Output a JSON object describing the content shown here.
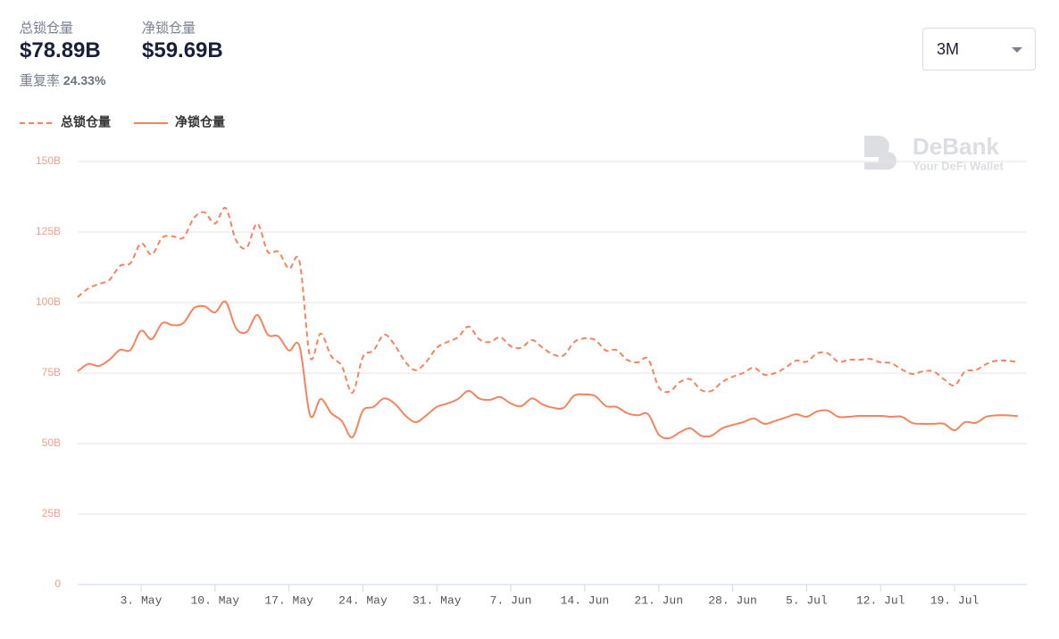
{
  "header": {
    "total_label": "总锁仓量",
    "total_value": "$78.89B",
    "net_label": "净锁仓量",
    "net_value": "$59.69B",
    "ratio_label": "重复率",
    "ratio_value": "24.33%"
  },
  "range_select": "3M",
  "watermark": {
    "brand": "DeBank",
    "tagline": "Your DeFi Wallet"
  },
  "chart_data": {
    "type": "line",
    "legend": "top-left",
    "grid": true,
    "categories": [
      null,
      null,
      null,
      null,
      null,
      null,
      "3. May",
      null,
      null,
      null,
      null,
      null,
      null,
      "10. May",
      null,
      null,
      null,
      null,
      null,
      null,
      "17. May",
      null,
      null,
      null,
      null,
      null,
      null,
      "24. May",
      null,
      null,
      null,
      null,
      null,
      null,
      "31. May",
      null,
      null,
      null,
      null,
      null,
      null,
      "7. Jun",
      null,
      null,
      null,
      null,
      null,
      null,
      "14. Jun",
      null,
      null,
      null,
      null,
      null,
      null,
      "21. Jun",
      null,
      null,
      null,
      null,
      null,
      null,
      "28. Jun",
      null,
      null,
      null,
      null,
      null,
      null,
      "5. Jul",
      null,
      null,
      null,
      null,
      null,
      null,
      "12. Jul",
      null,
      null,
      null,
      null,
      null,
      null,
      "19. Jul",
      null,
      null,
      null,
      null,
      null,
      null
    ],
    "series": [
      {
        "name": "总锁仓量",
        "color": "#f4845f",
        "dashed": true,
        "values": [
          101.9,
          105,
          106.6,
          108,
          113,
          114,
          121,
          117,
          123,
          123.5,
          123,
          130,
          132,
          128,
          133.5,
          122,
          119.5,
          128,
          118,
          118,
          112,
          114.5,
          80.7,
          89,
          81,
          77.5,
          68,
          80.7,
          83,
          88.6,
          85,
          79,
          76,
          79,
          84,
          86,
          87.7,
          91.5,
          87,
          86,
          87.7,
          84.5,
          84,
          86.7,
          84,
          81.6,
          81.3,
          86,
          87.3,
          86.7,
          83,
          83.2,
          79.7,
          78.8,
          80,
          70,
          68.4,
          71.8,
          72.8,
          69,
          68.7,
          71.8,
          73.7,
          75,
          76.9,
          74.4,
          75,
          76.9,
          79.4,
          79,
          82,
          82,
          79,
          79.7,
          79.7,
          80,
          78.8,
          78.5,
          76.3,
          74.7,
          75.6,
          75.6,
          72.8,
          70.6,
          75.6,
          76,
          78.2,
          79.4,
          79.4,
          78.9
        ]
      },
      {
        "name": "净锁仓量",
        "color": "#f4845f",
        "dashed": false,
        "values": [
          75.6,
          78.2,
          77.5,
          79.7,
          83.2,
          83.2,
          90,
          87,
          92.7,
          92,
          92.7,
          98,
          98.7,
          96.5,
          100.3,
          90.8,
          89.6,
          95.6,
          88.6,
          88,
          83,
          84.5,
          60,
          65.8,
          60.8,
          58,
          52.2,
          61.7,
          63,
          66,
          64.2,
          60,
          57.6,
          60,
          63,
          64.2,
          65.8,
          68.7,
          66,
          65.5,
          66.5,
          64.2,
          63.3,
          66,
          63.9,
          62.7,
          62.7,
          67,
          67.4,
          66.8,
          63.3,
          63,
          60.8,
          60,
          60.4,
          53.2,
          51.9,
          54,
          55.4,
          52.8,
          52.8,
          55.4,
          56.6,
          57.6,
          58.9,
          57,
          58,
          59.2,
          60.4,
          59.5,
          61.4,
          61.7,
          59.5,
          59.5,
          59.8,
          59.8,
          59.8,
          59.5,
          59.5,
          57.3,
          57,
          57,
          57,
          54.7,
          57.6,
          57.3,
          59.5,
          60,
          60,
          59.7
        ]
      }
    ],
    "ylim": [
      0,
      150
    ],
    "yticks": [
      0,
      {
        "value": 25,
        "label": "25B"
      },
      {
        "value": 50,
        "label": "50B"
      },
      {
        "value": 75,
        "label": "75B"
      },
      {
        "value": 100,
        "label": "100B"
      },
      {
        "value": 125,
        "label": "125B"
      },
      {
        "value": 150,
        "label": "150B"
      }
    ]
  }
}
